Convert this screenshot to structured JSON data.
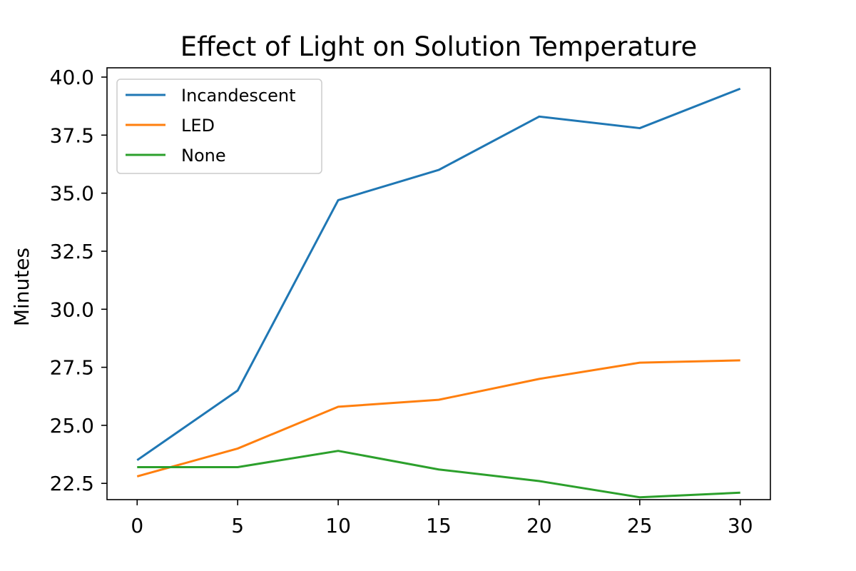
{
  "chart_data": {
    "type": "line",
    "title": "Effect of Light on Solution Temperature",
    "xlabel": "",
    "ylabel": "Minutes",
    "x": [
      0,
      5,
      10,
      15,
      20,
      25,
      30
    ],
    "xticks": [
      "0",
      "5",
      "10",
      "15",
      "20",
      "25",
      "30"
    ],
    "yticks": [
      "22.5",
      "25.0",
      "27.5",
      "30.0",
      "32.5",
      "35.0",
      "37.5",
      "40.0"
    ],
    "xlim": [
      -1.5,
      31.5
    ],
    "ylim": [
      21.8,
      40.4
    ],
    "grid": false,
    "legend_position": "top-left",
    "series": [
      {
        "name": "Incandescent",
        "color": "#1f77b4",
        "values": [
          23.5,
          26.5,
          34.7,
          36.0,
          38.3,
          37.8,
          39.5
        ]
      },
      {
        "name": "LED",
        "color": "#ff7f0e",
        "values": [
          22.8,
          24.0,
          25.8,
          26.1,
          27.0,
          27.7,
          27.8
        ]
      },
      {
        "name": "None",
        "color": "#2ca02c",
        "values": [
          23.2,
          23.2,
          23.9,
          23.1,
          22.6,
          21.9,
          22.1
        ]
      }
    ]
  }
}
